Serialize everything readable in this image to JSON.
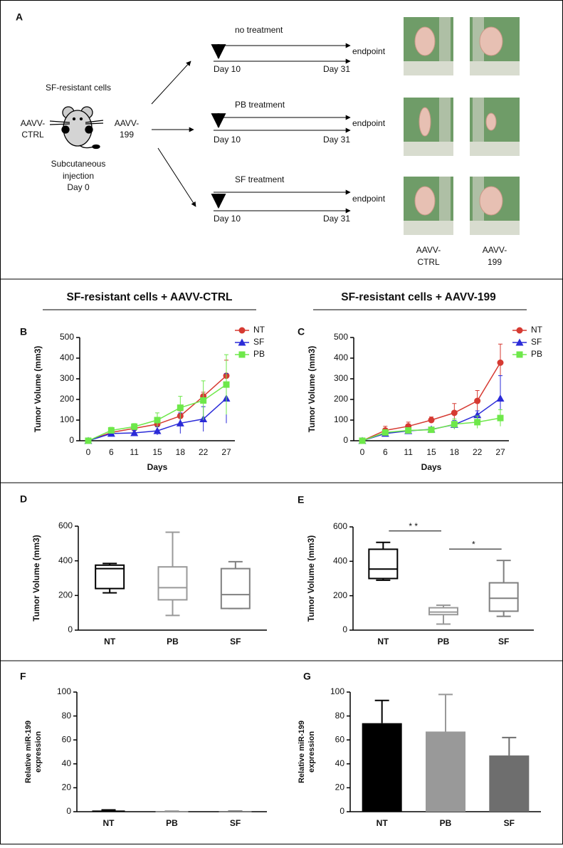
{
  "diagram": {
    "label": "A",
    "cells": "SF-resistant cells",
    "left_vector": [
      "AAVV-",
      "CTRL"
    ],
    "right_vector": [
      "AAVV-",
      "199"
    ],
    "injection": [
      "Subcutaneous",
      "injection",
      "Day 0"
    ],
    "arms": [
      {
        "treatment": "no treatment",
        "start": "Day 10",
        "end": "Day 31",
        "outcome": "endpoint"
      },
      {
        "treatment": "PB treatment",
        "start": "Day 10",
        "end": "Day 31",
        "outcome": "endpoint"
      },
      {
        "treatment": "SF treatment",
        "start": "Day 10",
        "end": "Day 31",
        "outcome": "endpoint"
      }
    ],
    "photo_columns": [
      [
        "AAVV-",
        "CTRL"
      ],
      [
        "AAVV-",
        "199"
      ]
    ]
  },
  "chart_data": [
    {
      "type": "line",
      "label": "B",
      "title": "SF-resistant cells + AAVV-CTRL",
      "categories": [
        "0",
        "6",
        "11",
        "15",
        "18",
        "22",
        "27"
      ],
      "xlabel": "Days",
      "ylabel": "Tumor Volume (mm3)",
      "ylim": [
        0,
        500
      ],
      "yticks": [
        0,
        100,
        200,
        300,
        400,
        500
      ],
      "legend": "upper right",
      "series": [
        {
          "name": "NT",
          "color": "#d63a32",
          "marker": "circle",
          "values": [
            0,
            40,
            60,
            80,
            120,
            215,
            315
          ],
          "errors": [
            0,
            10,
            15,
            20,
            25,
            20,
            75
          ]
        },
        {
          "name": "SF",
          "color": "#2b2bd8",
          "marker": "triangle",
          "values": [
            0,
            35,
            38,
            48,
            85,
            105,
            205
          ],
          "errors": [
            0,
            10,
            12,
            20,
            50,
            60,
            120
          ]
        },
        {
          "name": "PB",
          "color": "#6ee84a",
          "marker": "square",
          "values": [
            0,
            50,
            68,
            100,
            160,
            195,
            272
          ],
          "errors": [
            0,
            15,
            15,
            35,
            55,
            95,
            145
          ]
        }
      ]
    },
    {
      "type": "line",
      "label": "C",
      "title": "SF-resistant cells + AAVV-199",
      "categories": [
        "0",
        "6",
        "11",
        "15",
        "18",
        "22",
        "27"
      ],
      "xlabel": "Days",
      "ylabel": "Tumor Volume (mm3)",
      "ylim": [
        0,
        500
      ],
      "yticks": [
        0,
        100,
        200,
        300,
        400,
        500
      ],
      "legend": "upper right",
      "series": [
        {
          "name": "NT",
          "color": "#d63a32",
          "marker": "circle",
          "values": [
            0,
            50,
            70,
            100,
            135,
            193,
            378
          ],
          "errors": [
            0,
            20,
            20,
            15,
            45,
            50,
            90
          ]
        },
        {
          "name": "SF",
          "color": "#2b2bd8",
          "marker": "triangle",
          "values": [
            0,
            35,
            48,
            55,
            78,
            125,
            205
          ],
          "errors": [
            0,
            10,
            10,
            10,
            20,
            20,
            110
          ]
        },
        {
          "name": "PB",
          "color": "#6ee84a",
          "marker": "square",
          "values": [
            0,
            40,
            50,
            53,
            80,
            90,
            110
          ],
          "errors": [
            0,
            10,
            10,
            10,
            25,
            30,
            40
          ]
        }
      ]
    },
    {
      "type": "box",
      "label": "D",
      "categories": [
        "NT",
        "PB",
        "SF"
      ],
      "ylabel": "Tumor Volume (mm3)",
      "ylim": [
        0,
        600
      ],
      "yticks": [
        0,
        200,
        400,
        600
      ],
      "colors": [
        "#000000",
        "#999999",
        "#808080"
      ],
      "boxes": [
        {
          "min": 215,
          "q1": 240,
          "median": 355,
          "q3": 375,
          "max": 385
        },
        {
          "min": 85,
          "q1": 175,
          "median": 245,
          "q3": 365,
          "max": 565
        },
        {
          "min": 125,
          "q1": 125,
          "median": 205,
          "q3": 355,
          "max": 395
        }
      ]
    },
    {
      "type": "box",
      "label": "E",
      "categories": [
        "NT",
        "PB",
        "SF"
      ],
      "ylabel": "Tumor Volume (mm3)",
      "ylim": [
        0,
        600
      ],
      "yticks": [
        0,
        200,
        400,
        600
      ],
      "colors": [
        "#000000",
        "#999999",
        "#808080"
      ],
      "boxes": [
        {
          "min": 290,
          "q1": 300,
          "median": 355,
          "q3": 470,
          "max": 510
        },
        {
          "min": 35,
          "q1": 90,
          "median": 105,
          "q3": 130,
          "max": 145
        },
        {
          "min": 80,
          "q1": 110,
          "median": 185,
          "q3": 275,
          "max": 405
        }
      ],
      "annotations": [
        {
          "text": "* *",
          "between": [
            "NT",
            "PB"
          ]
        },
        {
          "text": "*",
          "between": [
            "PB",
            "SF"
          ]
        }
      ]
    },
    {
      "type": "bar",
      "label": "F",
      "categories": [
        "NT",
        "PB",
        "SF"
      ],
      "ylabel": [
        "Relative miR-199",
        "expression"
      ],
      "ylim": [
        0,
        100
      ],
      "yticks": [
        0,
        20,
        40,
        60,
        80,
        100
      ],
      "colors": [
        "#000000",
        "#999999",
        "#777777"
      ],
      "values": [
        1,
        0.3,
        0.3
      ],
      "errors": [
        0.5,
        0.2,
        0.2
      ]
    },
    {
      "type": "bar",
      "label": "G",
      "categories": [
        "NT",
        "PB",
        "SF"
      ],
      "ylabel": [
        "Relative miR-199",
        "expression"
      ],
      "ylim": [
        0,
        100
      ],
      "yticks": [
        0,
        20,
        40,
        60,
        80,
        100
      ],
      "colors": [
        "#000000",
        "#999999",
        "#6e6e6e"
      ],
      "values": [
        74,
        67,
        47
      ],
      "errors": [
        19,
        31,
        15
      ]
    }
  ]
}
